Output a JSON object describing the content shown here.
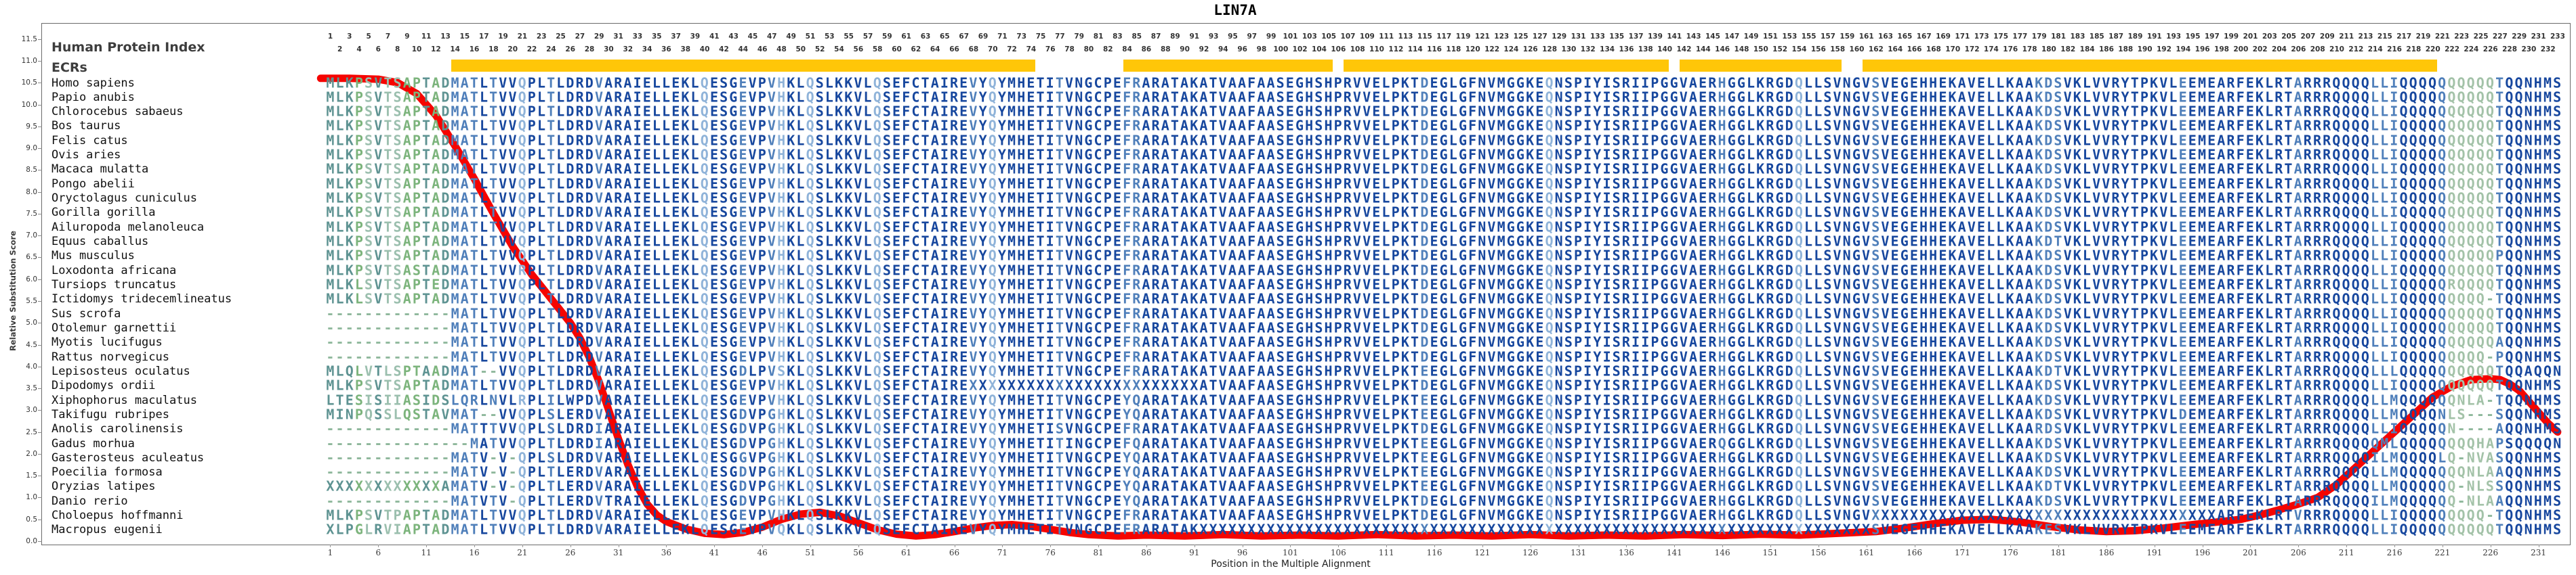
{
  "title": "LIN7A",
  "y_axis": {
    "label": "Relative Substitution Score",
    "min": 0.0,
    "max": 11.5,
    "step": 0.5
  },
  "x_axis": {
    "label": "Position in the Multiple Alignment",
    "first_tick": 1,
    "tick_step": 5,
    "last_tick": 231
  },
  "header": {
    "index_label": "Human Protein Index",
    "ecr_label": "ECRs"
  },
  "ecr_track": {
    "color": "#FFC608",
    "segments": [
      [
        14,
        74
      ],
      [
        84,
        105
      ],
      [
        107,
        140
      ],
      [
        142,
        158
      ],
      [
        161,
        220
      ]
    ]
  },
  "palette": {
    "navy": "#17479e",
    "steel": "#4f7fba",
    "light": "#8fb3d9",
    "teal": "#5e9392",
    "green": "#7cb47c",
    "sagep": "#9bbfae",
    "sage": "#a3c2a8",
    "gap": "#8fb89c",
    "curve_red": "#f50400"
  },
  "column_tones": {
    "teal": [
      1,
      2,
      3,
      6,
      11,
      13
    ],
    "green": [
      4,
      9,
      10,
      12
    ],
    "sagep": [
      5,
      7,
      8
    ],
    "steel": [
      14,
      15,
      16,
      18,
      24,
      29,
      44,
      47,
      68,
      77,
      84,
      85,
      115,
      146,
      162,
      179,
      180,
      181,
      194,
      206,
      214,
      215,
      216,
      221,
      227
    ],
    "light": [
      21,
      40,
      48,
      51,
      58,
      70,
      128,
      154
    ],
    "sage": [
      222,
      223,
      224,
      225,
      226
    ]
  },
  "alignment": {
    "positions": 233,
    "consensus": "MLKPSVTSAPTADMATLTVVQPLTLDRDVARAIELLEKLQESGEVPVHKLQSLKKVLQSEFCTAIREVYQYMHETITVNGCPEFRARATAKATVAAFAASEGHSHPRVVELPKTDEGLGFNVMGGKEQNSPIYISRIIPGGVAERHGGLKRGDQLLSVNGVSVEGEHHEKAVELLKAAKDSVKLVVRYTPKVLEEMEARFEKLRTARRRQQQQLLIQQQQQQQQQQTQQNHMS",
    "species": [
      {
        "name": "Homo sapiens",
        "overrides": []
      },
      {
        "name": "Papio anubis",
        "overrides": []
      },
      {
        "name": "Chlorocebus sabaeus",
        "overrides": []
      },
      {
        "name": "Bos taurus",
        "overrides": []
      },
      {
        "name": "Felis catus",
        "overrides": []
      },
      {
        "name": "Ovis aries",
        "overrides": []
      },
      {
        "name": "Macaca mulatta",
        "overrides": []
      },
      {
        "name": "Pongo abelii",
        "overrides": []
      },
      {
        "name": "Oryctolagus cuniculus",
        "overrides": []
      },
      {
        "name": "Gorilla gorilla",
        "overrides": []
      },
      {
        "name": "Ailuropoda melanoleuca",
        "overrides": []
      },
      {
        "name": "Equus caballus",
        "overrides": [
          [
            181,
            "T"
          ]
        ]
      },
      {
        "name": "Mus musculus",
        "overrides": [
          [
            227,
            "P"
          ]
        ]
      },
      {
        "name": "Loxodonta africana",
        "overrides": [
          [
            10,
            "S"
          ],
          [
            21,
            "R"
          ]
        ]
      },
      {
        "name": "Tursiops truncatus",
        "overrides": [
          [
            4,
            "L"
          ],
          [
            12,
            "E"
          ],
          [
            222,
            "R"
          ]
        ]
      },
      {
        "name": "Ictidomys tridecemlineatus",
        "overrides": [
          [
            4,
            "L"
          ],
          [
            226,
            "-"
          ]
        ]
      },
      {
        "name": "Sus scrofa",
        "overrides": [
          [
            1,
            "-------------"
          ]
        ]
      },
      {
        "name": "Otolemur garnettii",
        "overrides": [
          [
            1,
            "-------------"
          ]
        ]
      },
      {
        "name": "Myotis lucifugus",
        "overrides": [
          [
            1,
            "-------------"
          ],
          [
            227,
            "A"
          ]
        ]
      },
      {
        "name": "Rattus norvegicus",
        "overrides": [
          [
            1,
            "-------------"
          ],
          [
            226,
            "-P"
          ]
        ]
      },
      {
        "name": "Lepisosteus oculatus",
        "overrides": [
          [
            1,
            "MLQLVTLSPTAAD"
          ],
          [
            17,
            "--"
          ],
          [
            44,
            "DLPVS"
          ],
          [
            115,
            "E"
          ],
          [
            181,
            "T"
          ],
          [
            216,
            "L"
          ],
          [
            230,
            "AQQN"
          ]
        ]
      },
      {
        "name": "Dipodomys ordii",
        "overrides": [
          [
            68,
            "XXXXXXXXXXXXXXXXXXXXXXXX"
          ]
        ]
      },
      {
        "name": "Xiphophorus maculatus",
        "overrides": [
          [
            1,
            "LTESISIIASIDSLQRLNVLRPLILWPD"
          ],
          [
            84,
            "YQ"
          ],
          [
            115,
            "E"
          ],
          [
            216,
            "M"
          ],
          [
            223,
            "NLA-"
          ]
        ]
      },
      {
        "name": "Takifugu rubripes",
        "overrides": [
          [
            1,
            "MINPQSSLQSTAV"
          ],
          [
            17,
            "--"
          ],
          [
            24,
            "S"
          ],
          [
            26,
            "E"
          ],
          [
            44,
            "DVPGH"
          ],
          [
            84,
            "YQ"
          ],
          [
            115,
            "E"
          ],
          [
            194,
            "D"
          ],
          [
            216,
            "MQQQQNLS---S"
          ]
        ]
      },
      {
        "name": "Anolis carolinensis",
        "overrides": [
          [
            1,
            "-------------"
          ],
          [
            17,
            "TT"
          ],
          [
            24,
            "S"
          ],
          [
            29,
            "I"
          ],
          [
            44,
            "DVPGH"
          ],
          [
            77,
            "S"
          ],
          [
            179,
            "R"
          ],
          [
            222,
            "N----A"
          ]
        ]
      },
      {
        "name": "Gadus morhua",
        "overrides": [
          [
            1,
            "---------------"
          ],
          [
            16,
            "MATVV"
          ],
          [
            29,
            "I"
          ],
          [
            44,
            "DVPGH"
          ],
          [
            78,
            "I"
          ],
          [
            85,
            "Q"
          ],
          [
            115,
            "E"
          ],
          [
            146,
            "Q"
          ],
          [
            210,
            "QQQQQMLQQQQQQQQHAPSQQQQN"
          ]
        ]
      },
      {
        "name": "Gasterosteus aculeatus",
        "overrides": [
          [
            1,
            "-------------"
          ],
          [
            17,
            "V-V-"
          ],
          [
            24,
            "S"
          ],
          [
            44,
            "GVPGH"
          ],
          [
            84,
            "YQ"
          ],
          [
            115,
            "E"
          ],
          [
            214,
            "ILMQQQQLQ-NVASQQNHMS"
          ]
        ]
      },
      {
        "name": "Poecilia formosa",
        "overrides": [
          [
            1,
            "-------------"
          ],
          [
            17,
            "V-V-"
          ],
          [
            26,
            "E"
          ],
          [
            44,
            "DVPGH"
          ],
          [
            84,
            "YQ"
          ],
          [
            115,
            "E"
          ],
          [
            215,
            "LMQQQQQQQNLAAQQNHMS"
          ]
        ]
      },
      {
        "name": "Oryzias latipes",
        "overrides": [
          [
            1,
            "XXXXXXXXXXXXA"
          ],
          [
            17,
            "V-V-"
          ],
          [
            26,
            "E"
          ],
          [
            44,
            "DVPGH"
          ],
          [
            84,
            "YQ"
          ],
          [
            115,
            "E"
          ],
          [
            181,
            "T"
          ],
          [
            215,
            "LMQQQQQQ-NLSSQQNHMS"
          ]
        ]
      },
      {
        "name": "Danio rerio",
        "overrides": [
          [
            1,
            "-------------"
          ],
          [
            17,
            "VTV-"
          ],
          [
            26,
            "E"
          ],
          [
            30,
            "T"
          ],
          [
            44,
            "DVPGH"
          ],
          [
            84,
            "YQ"
          ],
          [
            214,
            "ILMQQQQQQ-NLAAQQNHMS"
          ]
        ]
      },
      {
        "name": "Choloepus hoffmanni",
        "overrides": [
          [
            8,
            "P"
          ],
          [
            162,
            "XXXXXXXXXXXXXXXXXXXXXXXXXXXXXXXXXXXX"
          ],
          [
            206,
            "V"
          ],
          [
            226,
            "-"
          ]
        ]
      },
      {
        "name": "Macropus eugenii",
        "overrides": [
          [
            1,
            "XLPGLRVIAPTAD"
          ],
          [
            48,
            "Q"
          ],
          [
            92,
            "XXXXXXXXXXXXXXXXXXXXXXXXXXXXXXXXXXXXXXXXXXXXXXXXXXXXXXXXXXXXXXXXXXXXXX"
          ],
          [
            180,
            "E"
          ]
        ]
      }
    ]
  },
  "chart_data": {
    "type": "line",
    "title": "LIN7A",
    "xlabel": "Position in the Multiple Alignment",
    "ylabel": "Relative Substitution Score",
    "xlim": [
      1,
      233
    ],
    "ylim": [
      0,
      11.5
    ],
    "grid": false,
    "legend": "none",
    "series": [
      {
        "name": "Relative Substitution Score",
        "color": "#f50400",
        "x": [
          0,
          3,
          6,
          8,
          10,
          12,
          14,
          16,
          18,
          20,
          22,
          24,
          26,
          27,
          28,
          29,
          30,
          31,
          32,
          33,
          34,
          35,
          36,
          38,
          40,
          42,
          44,
          46,
          48,
          50,
          52,
          54,
          56,
          58,
          60,
          62,
          64,
          66,
          68,
          70,
          72,
          74,
          76,
          78,
          80,
          83,
          86,
          90,
          94,
          98,
          102,
          106,
          110,
          114,
          118,
          122,
          126,
          130,
          134,
          138,
          142,
          146,
          150,
          154,
          158,
          162,
          165,
          168,
          171,
          174,
          177,
          180,
          183,
          186,
          189,
          192,
          195,
          198,
          200,
          202,
          204,
          206,
          208,
          210,
          212,
          214,
          216,
          218,
          220,
          222,
          224,
          226,
          227,
          228,
          229,
          230,
          231,
          232,
          233
        ],
        "y": [
          10.6,
          10.6,
          10.58,
          10.5,
          10.25,
          9.75,
          9.05,
          8.3,
          7.5,
          6.75,
          6.1,
          5.55,
          5.0,
          4.65,
          4.2,
          3.65,
          3.0,
          2.35,
          1.75,
          1.25,
          0.85,
          0.6,
          0.45,
          0.28,
          0.18,
          0.15,
          0.2,
          0.32,
          0.5,
          0.62,
          0.66,
          0.58,
          0.42,
          0.26,
          0.16,
          0.12,
          0.15,
          0.22,
          0.3,
          0.36,
          0.38,
          0.34,
          0.27,
          0.2,
          0.15,
          0.12,
          0.14,
          0.12,
          0.15,
          0.12,
          0.14,
          0.12,
          0.15,
          0.12,
          0.14,
          0.12,
          0.15,
          0.12,
          0.14,
          0.12,
          0.15,
          0.13,
          0.16,
          0.14,
          0.18,
          0.22,
          0.3,
          0.4,
          0.48,
          0.5,
          0.44,
          0.34,
          0.26,
          0.22,
          0.24,
          0.3,
          0.38,
          0.45,
          0.5,
          0.6,
          0.72,
          0.85,
          1.0,
          1.3,
          1.7,
          2.1,
          2.5,
          2.9,
          3.3,
          3.55,
          3.7,
          3.72,
          3.7,
          3.6,
          3.45,
          3.2,
          2.95,
          2.7,
          2.5
        ]
      }
    ],
    "tracks": {
      "human_protein_index_positions": [
        1,
        233
      ],
      "ecr_segments": [
        [
          14,
          74
        ],
        [
          84,
          105
        ],
        [
          107,
          140
        ],
        [
          142,
          158
        ],
        [
          161,
          220
        ]
      ]
    }
  }
}
